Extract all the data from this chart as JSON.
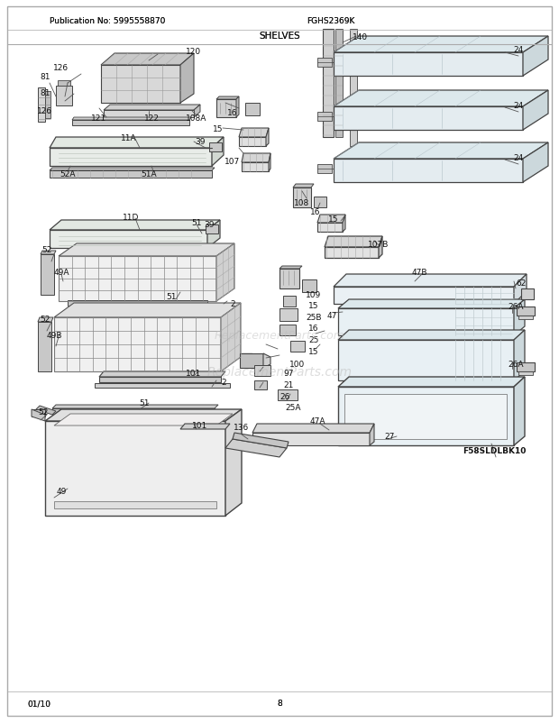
{
  "bg_color": "#ffffff",
  "pub_no": "Publication No: 5995558870",
  "model": "FGHS2369K",
  "section": "SHELVES",
  "date": "01/10",
  "page": "8",
  "watermark": "ReplacementParts.com"
}
